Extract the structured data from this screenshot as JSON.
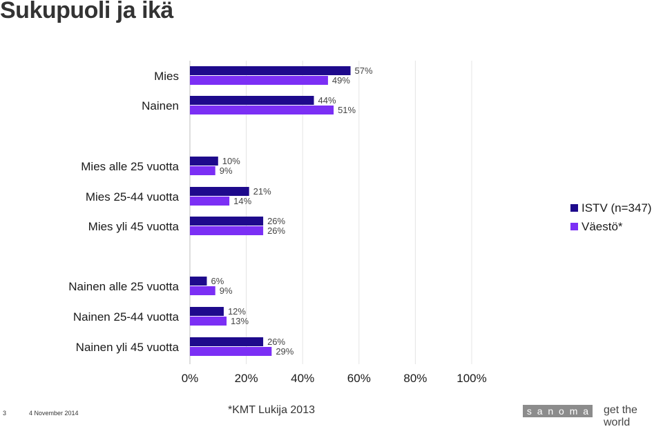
{
  "title": "Sukupuoli ja ikä",
  "chart_data": {
    "type": "bar",
    "orientation": "horizontal",
    "categories": [
      "Mies",
      "Nainen",
      "Mies alle 25 vuotta",
      "Mies 25-44 vuotta",
      "Mies yli 45 vuotta",
      "Nainen alle 25 vuotta",
      "Nainen 25-44 vuotta",
      "Nainen yli 45 vuotta"
    ],
    "series": [
      {
        "name": "ISTV (n=347)",
        "color": "#1e0a8c",
        "values": [
          57,
          44,
          10,
          21,
          26,
          6,
          12,
          26
        ]
      },
      {
        "name": "Väestö*",
        "color": "#7b2ff5",
        "values": [
          49,
          51,
          9,
          14,
          26,
          9,
          13,
          29
        ]
      }
    ],
    "value_labels": [
      [
        "57%",
        "44%",
        "10%",
        "21%",
        "26%",
        "6%",
        "12%",
        "26%"
      ],
      [
        "49%",
        "51%",
        "9%",
        "14%",
        "26%",
        "9%",
        "13%",
        "29%"
      ]
    ],
    "xlim": [
      0,
      100
    ],
    "ticks": [
      0,
      20,
      40,
      60,
      80,
      100
    ],
    "tick_labels": [
      "0%",
      "20%",
      "40%",
      "60%",
      "80%",
      "100%"
    ],
    "grid": true,
    "legend_position": "right"
  },
  "footer": {
    "page": "3",
    "date": "4 November 2014",
    "note": "*KMT Lukija 2013",
    "logo": "sanoma",
    "tagline": "get the world"
  }
}
